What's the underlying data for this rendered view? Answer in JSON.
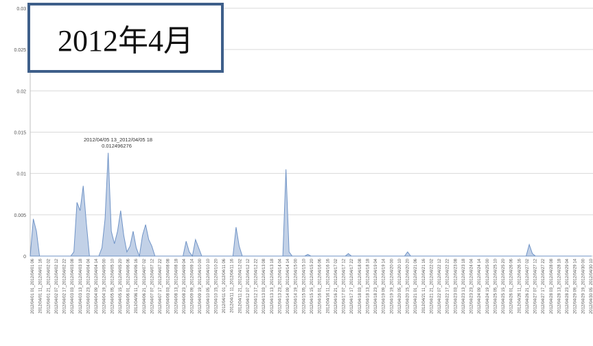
{
  "title_box": {
    "text": "2012年4月"
  },
  "chart_data": {
    "type": "area",
    "title": "",
    "xlabel": "",
    "ylabel": "",
    "ylim": [
      0,
      0.03
    ],
    "yticks": [
      0,
      0.005,
      0.01,
      0.015,
      0.02,
      0.025,
      0.03
    ],
    "ytick_labels": [
      "0",
      "0.005",
      "0.01",
      "0.015",
      "0.02",
      "0.025",
      "0.03"
    ],
    "grid": true,
    "colors": {
      "fill": "#b7c9e3",
      "stroke": "#6f93c6",
      "grid": "#d9d9d9"
    },
    "annotation": {
      "label": "2012/04/05 13_2012/04/05 18",
      "value": "0.012496276"
    },
    "x_labels": [
      "2012/04/01 01_2012/04/01 06",
      "2012/04/01 11_2012/04/01 16",
      "2012/04/01 21_2012/04/02 02",
      "2012/04/02 07_2012/04/02 12",
      "2012/04/02 17_2012/04/02 22",
      "2012/04/03 03_2012/04/03 08",
      "2012/04/03 13_2012/04/03 18",
      "2012/04/03 23_2012/04/04 04",
      "2012/04/04 09_2012/04/04 14",
      "2012/04/04 19_2012/04/05 00",
      "2012/04/05 05_2012/04/05 10",
      "2012/04/05 15_2012/04/05 20",
      "2012/04/06 01_2012/04/06 06",
      "2012/04/06 11_2012/04/06 16",
      "2012/04/06 21_2012/04/07 02",
      "2012/04/07 07_2012/04/07 12",
      "2012/04/07 17_2012/04/07 22",
      "2012/04/08 03_2012/04/08 08",
      "2012/04/08 13_2012/04/08 18",
      "2012/04/08 23_2012/04/09 04",
      "2012/04/09 09_2012/04/09 14",
      "2012/04/09 19_2012/04/10 00",
      "2012/04/10 05_2012/04/10 10",
      "2012/04/10 15_2012/04/10 20",
      "2012/04/11 01_2012/04/11 06",
      "2012/04/11 11_2012/04/11 16",
      "2012/04/11 21_2012/04/12 02",
      "2012/04/12 07_2012/04/12 12",
      "2012/04/12 17_2012/04/12 22",
      "2012/04/13 03_2012/04/13 08",
      "2012/04/13 13_2012/04/13 18",
      "2012/04/13 23_2012/04/14 04",
      "2012/04/14 09_2012/04/14 14",
      "2012/04/14 19_2012/04/15 00",
      "2012/04/15 05_2012/04/15 10",
      "2012/04/15 15_2012/04/15 20",
      "2012/04/16 01_2012/04/16 06",
      "2012/04/16 11_2012/04/16 16",
      "2012/04/16 21_2012/04/17 02",
      "2012/04/17 07_2012/04/17 12",
      "2012/04/17 17_2012/04/17 22",
      "2012/04/18 03_2012/04/18 08",
      "2012/04/18 13_2012/04/18 18",
      "2012/04/18 23_2012/04/19 04",
      "2012/04/19 09_2012/04/19 14",
      "2012/04/19 19_2012/04/20 00",
      "2012/04/20 05_2012/04/20 10",
      "2012/04/20 15_2012/04/20 20",
      "2012/04/21 01_2012/04/21 06",
      "2012/04/21 11_2012/04/21 16",
      "2012/04/21 21_2012/04/22 02",
      "2012/04/22 07_2012/04/22 12",
      "2012/04/22 17_2012/04/22 22",
      "2012/04/23 03_2012/04/23 08",
      "2012/04/23 13_2012/04/23 18",
      "2012/04/23 23_2012/04/24 04",
      "2012/04/24 09_2012/04/24 14",
      "2012/04/24 19_2012/04/25 00",
      "2012/04/25 05_2012/04/25 10",
      "2012/04/25 15_2012/04/25 20",
      "2012/04/26 01_2012/04/26 06",
      "2012/04/26 11_2012/04/26 16",
      "2012/04/26 21_2012/04/27 02",
      "2012/04/27 07_2012/04/27 12",
      "2012/04/27 17_2012/04/27 22",
      "2012/04/28 03_2012/04/28 08",
      "2012/04/28 13_2012/04/28 18",
      "2012/04/28 23_2012/04/29 04",
      "2012/04/29 09_2012/04/29 14",
      "2012/04/29 19_2012/04/30 00",
      "2012/04/30 05_2012/04/30 10"
    ],
    "values": [
      0,
      0.0045,
      0.003,
      0,
      0,
      0,
      0,
      0,
      0,
      0,
      0,
      0,
      0,
      0,
      0.0005,
      0.0065,
      0.0055,
      0.0085,
      0.004,
      0,
      0,
      0,
      0,
      0.001,
      0.0045,
      0.012496276,
      0.003,
      0.0015,
      0.003,
      0.0055,
      0.0025,
      0.0005,
      0.0012,
      0.003,
      0.001,
      0,
      0.0025,
      0.0038,
      0.002,
      0.0012,
      0,
      0,
      0,
      0,
      0,
      0,
      0,
      0,
      0,
      0,
      0.0018,
      0.0005,
      0,
      0.002,
      0.001,
      0,
      0,
      0,
      0,
      0,
      0,
      0,
      0,
      0,
      0,
      0,
      0.0035,
      0.0012,
      0,
      0,
      0,
      0,
      0,
      0,
      0,
      0,
      0,
      0,
      0,
      0,
      0,
      0,
      0.0105,
      0.0005,
      0,
      0,
      0,
      0,
      0,
      0.0002,
      0,
      0,
      0,
      0,
      0,
      0,
      0,
      0,
      0,
      0,
      0,
      0,
      0.0003,
      0,
      0,
      0,
      0,
      0,
      0,
      0,
      0,
      0,
      0,
      0,
      0,
      0,
      0,
      0,
      0,
      0,
      0,
      0.0005,
      0,
      0,
      0,
      0,
      0,
      0,
      0,
      0,
      0,
      0,
      0,
      0,
      0,
      0,
      0,
      0,
      0,
      0,
      0,
      0,
      0,
      0,
      0,
      0,
      0,
      0,
      0,
      0,
      0,
      0,
      0,
      0,
      0,
      0,
      0,
      0,
      0,
      0,
      0.0014,
      0.0003,
      0,
      0,
      0,
      0,
      0,
      0,
      0,
      0,
      0,
      0,
      0,
      0,
      0,
      0,
      0,
      0,
      0,
      0,
      0
    ]
  }
}
